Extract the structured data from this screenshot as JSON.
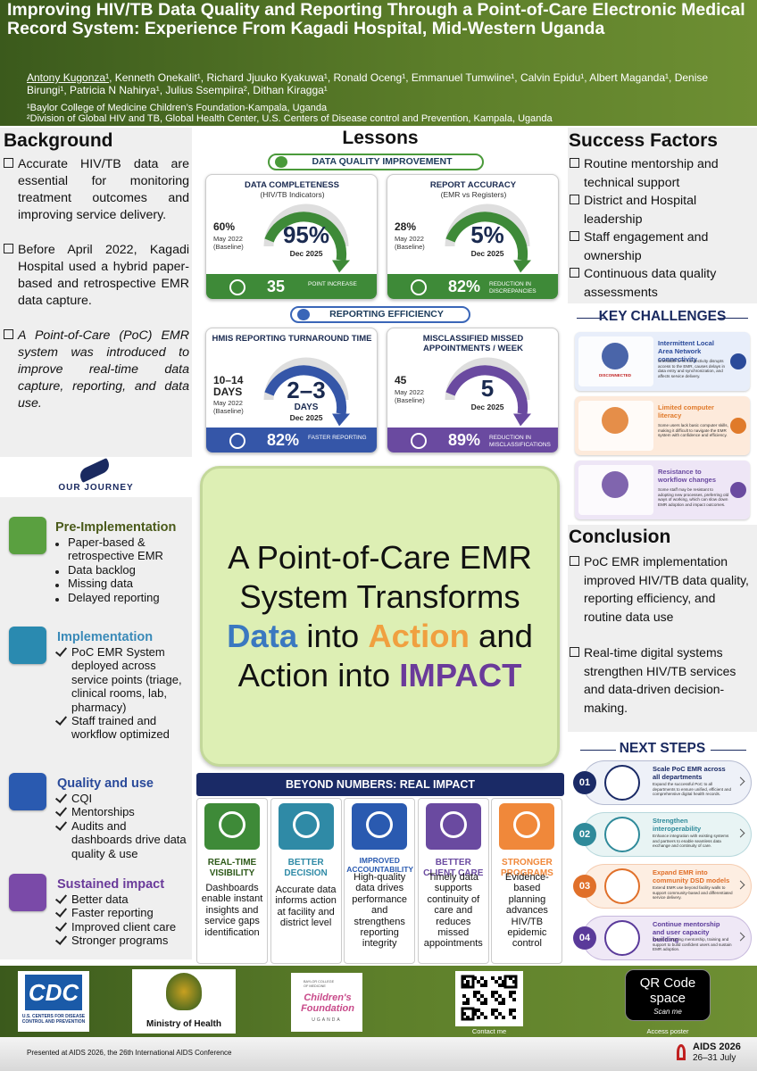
{
  "header": {
    "title": "Improving HIV/TB Data Quality and Reporting Through a Point-of-Care Electronic Medical Record System: Experience From Kagadi Hospital, Mid-Western Uganda",
    "presenter": "Antony Kugonza¹",
    "coauthors": ", Kenneth Onekalit¹, Richard Jjuuko Kyakuwa¹, Ronald Oceng¹, Emmanuel Tumwiine¹, Calvin Epidu¹, Albert Maganda¹, Denise Birungi¹, Patricia N Nahirya¹, Julius Ssempiira², Dithan Kiragga¹",
    "affiliations": [
      "¹Baylor College of Medicine Children’s Foundation-Kampala, Uganda",
      "²Division of Global HIV and TB, Global Health Center, U.S. Centers of Disease control and Prevention, Kampala, Uganda"
    ]
  },
  "background": {
    "heading": "Background",
    "items": [
      "Accurate HIV/TB data are essential for monitoring treatment outcomes and improving service delivery.",
      "Before April 2022, Kagadi Hospital used a hybrid paper-based and retrospective EMR data capture.",
      "A Point-of-Care (PoC) EMR system was introduced to improve real-time data capture, reporting, and data use."
    ]
  },
  "lessons": {
    "heading": "Lessons",
    "banners": [
      "DATA QUALITY IMPROVEMENT",
      "REPORTING EFFICIENCY"
    ],
    "cards": [
      {
        "title": "DATA COMPLETENESS",
        "subtitle": "(HIV/TB Indicators)",
        "baseline_value": "60%",
        "baseline_label": "May 2022 (Baseline)",
        "current_value": "95%",
        "current_label": "Dec 2025",
        "footer_value": "35",
        "footer_label": "POINT INCREASE"
      },
      {
        "title": "REPORT ACCURACY",
        "subtitle": "(EMR vs Registers)",
        "baseline_value": "28%",
        "baseline_label": "May 2022 (Baseline)",
        "current_value": "5%",
        "current_label": "Dec 2025",
        "footer_value": "82%",
        "footer_label": "REDUCTION IN DISCREPANCIES"
      },
      {
        "title": "HMIS REPORTING TURNAROUND TIME",
        "baseline_value": "10–14 DAYS",
        "baseline_label": "May 2022 (Baseline)",
        "current_value": "2–3",
        "current_unit": "DAYS",
        "current_label": "Dec 2025",
        "footer_value": "82%",
        "footer_label": "FASTER REPORTING"
      },
      {
        "title": "MISCLASSIFIED MISSED APPOINTMENTS / WEEK",
        "baseline_value": "45",
        "baseline_label": "May 2022 (Baseline)",
        "current_value": "5",
        "current_label": "Dec 2025",
        "footer_value": "89%",
        "footer_label": "REDUCTION IN MISCLASSIFICATIONS"
      }
    ]
  },
  "success_factors": {
    "heading": "Success Factors",
    "items": [
      "Routine mentorship and technical support",
      "District and Hospital leadership",
      "Staff engagement and ownership",
      "Continuous data quality assessments"
    ]
  },
  "key_challenges": {
    "heading": "KEY CHALLENGES",
    "icon_label": "DISCONNECTED",
    "items": [
      {
        "title": "Intermittent Local Area Network connectivity",
        "text": "Unreliable LAN connectivity disrupts access to the EMR, causes delays in data entry and synchronization, and affects service delivery."
      },
      {
        "title": "Limited computer literacy",
        "text": "Some users lack basic computer skills, making it difficult to navigate the EMR system with confidence and efficiency."
      },
      {
        "title": "Resistance to workflow changes",
        "text": "Some staff may be resistant to adopting new processes, preferring old ways of working, which can slow down EMR adoption and impact outcomes."
      }
    ]
  },
  "journey": {
    "heading": "OUR JOURNEY",
    "stages": [
      {
        "title": "Pre-Implementation",
        "items": [
          "Paper-based & retrospective EMR",
          "Data backlog",
          "Missing data",
          "Delayed reporting"
        ]
      },
      {
        "title": "Implementation",
        "items": [
          "PoC EMR System deployed across service points (triage, clinical rooms, lab, pharmacy)",
          "Staff trained and workflow optimized"
        ]
      },
      {
        "title": "Quality and use",
        "items": [
          "CQI",
          "Mentorships",
          "Audits and dashboards drive data quality & use"
        ]
      },
      {
        "title": "Sustained impact",
        "items": [
          "Better data",
          "Faster reporting",
          "Improved client care",
          "Stronger programs"
        ]
      }
    ]
  },
  "statement": {
    "segments": [
      "A Point-of-Care EMR System Transforms ",
      "Data",
      " into ",
      "Action",
      " and Action into ",
      "IMPACT"
    ]
  },
  "impact": {
    "heading": "BEYOND NUMBERS: REAL IMPACT",
    "items": [
      {
        "title": "REAL-TIME VISIBILITY",
        "text": "Dashboards enable instant insights and service gaps identification"
      },
      {
        "title": "BETTER DECISION",
        "text": "Accurate data informs action at facility and district level"
      },
      {
        "title": "IMPROVED ACCOUNTABILITY",
        "text": "High-quality data drives performance and strengthens reporting integrity"
      },
      {
        "title": "BETTER CLIENT CARE",
        "text": "Timely data supports continuity of care and reduces missed appointments"
      },
      {
        "title": "STRONGER PROGRAMS",
        "text": "Evidence-based planning advances HIV/TB epidemic control"
      }
    ]
  },
  "conclusion": {
    "heading": "Conclusion",
    "items": [
      "PoC EMR implementation improved HIV/TB data quality, reporting efficiency, and routine data use",
      "Real-time digital systems strengthen HIV/TB services and data-driven decision-making."
    ]
  },
  "next_steps": {
    "heading": "NEXT STEPS",
    "items": [
      {
        "number": "01",
        "title": "Scale PoC EMR across all departments",
        "text": "Expand the successful PoC to all departments to ensure unified, efficient and comprehensive digital health records."
      },
      {
        "number": "02",
        "title": "Strengthen interoperability",
        "text": "Enhance integration with existing systems and partners to enable seamless data exchange and continuity of care."
      },
      {
        "number": "03",
        "title": "Expand EMR into community DSD models",
        "text": "Extend EMR use beyond facility walls to support community-based and differentiated service delivery."
      },
      {
        "number": "04",
        "title": "Continue mentorship and user capacity building",
        "text": "Invest in ongoing mentorship, training and support to build confident users and sustain EMR adoption."
      }
    ]
  },
  "footer": {
    "cdc_logo": "CDC",
    "cdc_name": "U.S. CENTERS FOR DISEASE CONTROL AND PREVENTION",
    "moh": "Ministry of Health",
    "baylor": "BAYLOR COLLEGE OF MEDICINE",
    "childrens": "Children's Foundation",
    "uganda": "UGANDA",
    "contact": "Contact me",
    "qr_space": "QR Code space",
    "scan": "Scan me",
    "access": "Access poster",
    "presented": "Presented at AIDS 2026, the 26th International AIDS Conference",
    "conference": "AIDS 2026",
    "dates": "26–31 July"
  }
}
